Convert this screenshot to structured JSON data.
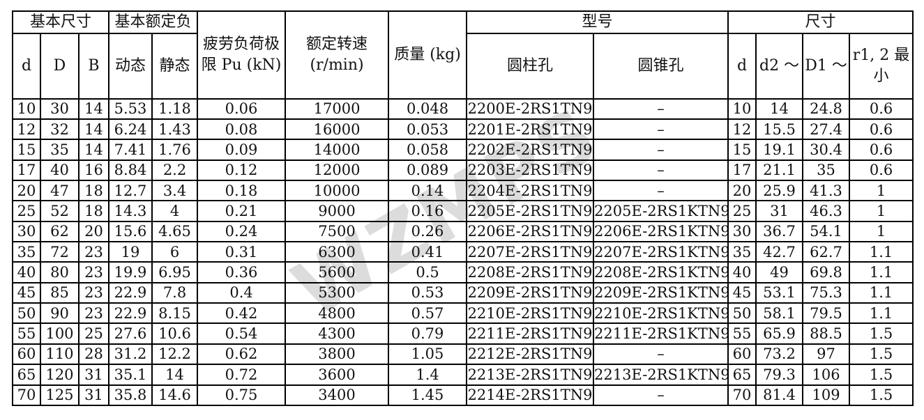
{
  "watermark": {
    "text": "WZMPS",
    "color": "#dcdcdc"
  },
  "colors": {
    "border": "#000000",
    "text": "#111111",
    "background": "#ffffff"
  },
  "table": {
    "header": {
      "basic_dims_group": "基本尺寸",
      "basic_load_group": "基本额定负",
      "fatigue_limit": "疲劳负荷极\n限 Pu (kN)",
      "rated_speed": "额定转速\n(r/min)",
      "mass": "质量 (kg)",
      "model_group": "型号",
      "dims_group": "尺寸",
      "d": "d",
      "D": "D",
      "B": "B",
      "dynamic": "动态",
      "static": "静态",
      "cylindrical_bore": "圆柱孔",
      "tapered_bore": "圆锥孔",
      "d_right": "d",
      "d2": "d2 ～",
      "D1": "D1 ～",
      "r12_min": "r1, 2 最\n小"
    },
    "columns": [
      "d",
      "D",
      "B",
      "动态",
      "静态",
      "疲劳负荷极限 Pu (kN)",
      "额定转速 (r/min)",
      "质量 (kg)",
      "圆柱孔",
      "圆锥孔",
      "d",
      "d2 ～",
      "D1 ～",
      "r1,2 最小"
    ],
    "rows": [
      [
        "10",
        "30",
        "14",
        "5.53",
        "1.18",
        "0.06",
        "17000",
        "0.048",
        "2200E-2RS1TN9",
        "–",
        "10",
        "14",
        "24.8",
        "0.6"
      ],
      [
        "12",
        "32",
        "14",
        "6.24",
        "1.43",
        "0.08",
        "16000",
        "0.053",
        "2201E-2RS1TN9",
        "–",
        "12",
        "15.5",
        "27.4",
        "0.6"
      ],
      [
        "15",
        "35",
        "14",
        "7.41",
        "1.76",
        "0.09",
        "14000",
        "0.058",
        "2202E-2RS1TN9",
        "–",
        "15",
        "19.1",
        "30.4",
        "0.6"
      ],
      [
        "17",
        "40",
        "16",
        "8.84",
        "2.2",
        "0.12",
        "12000",
        "0.089",
        "2203E-2RS1TN9",
        "–",
        "17",
        "21.1",
        "35",
        "0.6"
      ],
      [
        "20",
        "47",
        "18",
        "12.7",
        "3.4",
        "0.18",
        "10000",
        "0.14",
        "2204E-2RS1TN9",
        "–",
        "20",
        "25.9",
        "41.3",
        "1"
      ],
      [
        "25",
        "52",
        "18",
        "14.3",
        "4",
        "0.21",
        "9000",
        "0.16",
        "2205E-2RS1TN9",
        "2205E-2RS1KTN9",
        "25",
        "31",
        "46.3",
        "1"
      ],
      [
        "30",
        "62",
        "20",
        "15.6",
        "4.65",
        "0.24",
        "7500",
        "0.26",
        "2206E-2RS1TN9",
        "2206E-2RS1KTN9",
        "30",
        "36.7",
        "54.1",
        "1"
      ],
      [
        "35",
        "72",
        "23",
        "19",
        "6",
        "0.31",
        "6300",
        "0.41",
        "2207E-2RS1TN9",
        "2207E-2RS1KTN9",
        "35",
        "42.7",
        "62.7",
        "1.1"
      ],
      [
        "40",
        "80",
        "23",
        "19.9",
        "6.95",
        "0.36",
        "5600",
        "0.5",
        "2208E-2RS1TN9",
        "2208E-2RS1KTN9",
        "40",
        "49",
        "69.8",
        "1.1"
      ],
      [
        "45",
        "85",
        "23",
        "22.9",
        "7.8",
        "0.4",
        "5300",
        "0.53",
        "2209E-2RS1TN9",
        "2209E-2RS1KTN9",
        "45",
        "53.1",
        "75.3",
        "1.1"
      ],
      [
        "50",
        "90",
        "23",
        "22.9",
        "8.15",
        "0.42",
        "4800",
        "0.57",
        "2210E-2RS1TN9",
        "2210E-2RS1KTN9",
        "50",
        "58.1",
        "79.5",
        "1.1"
      ],
      [
        "55",
        "100",
        "25",
        "27.6",
        "10.6",
        "0.54",
        "4300",
        "0.79",
        "2211E-2RS1TN9",
        "2211E-2RS1KTN9",
        "55",
        "65.9",
        "88.5",
        "1.5"
      ],
      [
        "60",
        "110",
        "28",
        "31.2",
        "12.2",
        "0.62",
        "3800",
        "1.05",
        "2212E-2RS1TN9",
        "–",
        "60",
        "73.2",
        "97",
        "1.5"
      ],
      [
        "65",
        "120",
        "31",
        "35.1",
        "14",
        "0.72",
        "3600",
        "1.4",
        "2213E-2RS1TN9",
        "2213E-2RS1KTN9",
        "65",
        "79.3",
        "106",
        "1.5"
      ],
      [
        "70",
        "125",
        "31",
        "35.8",
        "14.6",
        "0.75",
        "3400",
        "1.45",
        "2214E-2RS1TN9",
        "–",
        "70",
        "81.4",
        "109",
        "1.5"
      ]
    ]
  }
}
